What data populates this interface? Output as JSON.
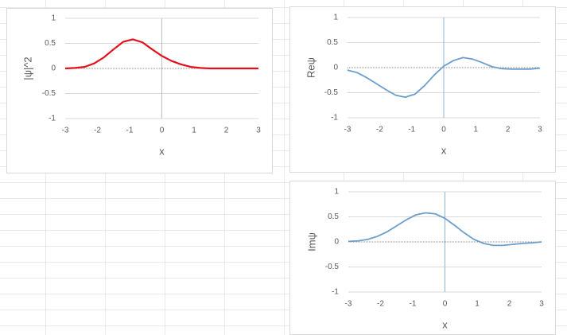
{
  "chart_data": [
    {
      "type": "line",
      "x_label": "x",
      "y_label": "|ψ|^2",
      "color": "#e3101c",
      "grid": true,
      "x": [
        -3,
        -2.7,
        -2.4,
        -2.1,
        -1.8,
        -1.5,
        -1.2,
        -0.9,
        -0.6,
        -0.3,
        0,
        0.3,
        0.6,
        0.9,
        1.2,
        1.5,
        1.8,
        2.1,
        2.4,
        2.7,
        3
      ],
      "values": [
        0.0,
        0.01,
        0.03,
        0.1,
        0.22,
        0.38,
        0.53,
        0.58,
        0.52,
        0.38,
        0.25,
        0.15,
        0.08,
        0.03,
        0.01,
        0.0,
        0.0,
        0.0,
        0.0,
        0.0,
        0.0
      ],
      "xlim": [
        -3,
        3
      ],
      "xticks": [
        -3,
        -2,
        -1,
        0,
        1,
        2,
        3
      ],
      "ylim": [
        -1,
        1
      ],
      "yticks": [
        -1,
        -0.5,
        0,
        0.5,
        1
      ]
    },
    {
      "type": "line",
      "x_label": "x",
      "y_label": "Reψ",
      "color": "#6c9dcb",
      "grid": true,
      "x": [
        -3,
        -2.7,
        -2.4,
        -2.1,
        -1.8,
        -1.5,
        -1.2,
        -0.9,
        -0.6,
        -0.3,
        0,
        0.3,
        0.6,
        0.9,
        1.2,
        1.5,
        1.8,
        2.1,
        2.4,
        2.7,
        3
      ],
      "values": [
        -0.05,
        -0.1,
        -0.2,
        -0.32,
        -0.44,
        -0.55,
        -0.59,
        -0.53,
        -0.36,
        -0.15,
        0.03,
        0.14,
        0.2,
        0.17,
        0.1,
        0.02,
        -0.02,
        -0.03,
        -0.03,
        -0.03,
        -0.01
      ],
      "xlim": [
        -3,
        3
      ],
      "xticks": [
        -3,
        -2,
        -1,
        0,
        1,
        2,
        3
      ],
      "ylim": [
        -1,
        1
      ],
      "yticks": [
        -1,
        -0.5,
        0,
        0.5,
        1
      ]
    },
    {
      "type": "line",
      "x_label": "x",
      "y_label": "Imψ",
      "color": "#6c9dcb",
      "grid": true,
      "x": [
        -3,
        -2.7,
        -2.4,
        -2.1,
        -1.8,
        -1.5,
        -1.2,
        -0.9,
        -0.6,
        -0.3,
        0,
        0.3,
        0.6,
        0.9,
        1.2,
        1.5,
        1.8,
        2.1,
        2.4,
        2.7,
        3
      ],
      "values": [
        0.01,
        0.02,
        0.05,
        0.11,
        0.2,
        0.32,
        0.44,
        0.54,
        0.58,
        0.56,
        0.47,
        0.33,
        0.18,
        0.05,
        -0.03,
        -0.07,
        -0.07,
        -0.05,
        -0.03,
        -0.02,
        0.0
      ],
      "xlim": [
        -3,
        3
      ],
      "xticks": [
        -3,
        -2,
        -1,
        0,
        1,
        2,
        3
      ],
      "ylim": [
        -1,
        1
      ],
      "yticks": [
        -1,
        -0.5,
        0,
        0.5,
        1
      ]
    }
  ]
}
